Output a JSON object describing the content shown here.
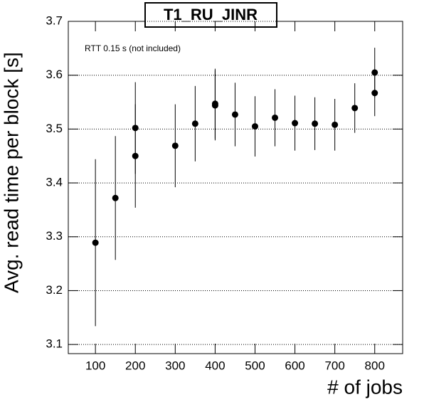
{
  "chart_data": {
    "type": "errorbar",
    "title": "T1_RU_JINR",
    "annotation": "RTT 0.15 s (not included)",
    "x_label": "# of jobs",
    "y_label": "Avg. read time per block [s]",
    "x": [
      100,
      150,
      200,
      200,
      300,
      350,
      400,
      400,
      450,
      500,
      550,
      600,
      650,
      700,
      750,
      800,
      800
    ],
    "values": [
      3.289,
      3.372,
      3.45,
      3.502,
      3.469,
      3.51,
      3.547,
      3.544,
      3.527,
      3.505,
      3.521,
      3.511,
      3.51,
      3.508,
      3.539,
      3.605,
      3.567
    ],
    "errors": [
      0.155,
      0.115,
      0.096,
      0.085,
      0.077,
      0.07,
      0.065,
      0.065,
      0.059,
      0.056,
      0.053,
      0.051,
      0.049,
      0.048,
      0.046,
      0.046,
      0.043
    ],
    "color": "#000000",
    "xlim": [
      32,
      870
    ],
    "xticks": [
      100,
      200,
      300,
      400,
      500,
      600,
      700,
      800
    ],
    "ylim": [
      3.083,
      3.7
    ],
    "yticks": [
      3.1,
      3.2,
      3.3,
      3.4,
      3.5,
      3.6,
      3.7
    ],
    "grid": "y"
  }
}
